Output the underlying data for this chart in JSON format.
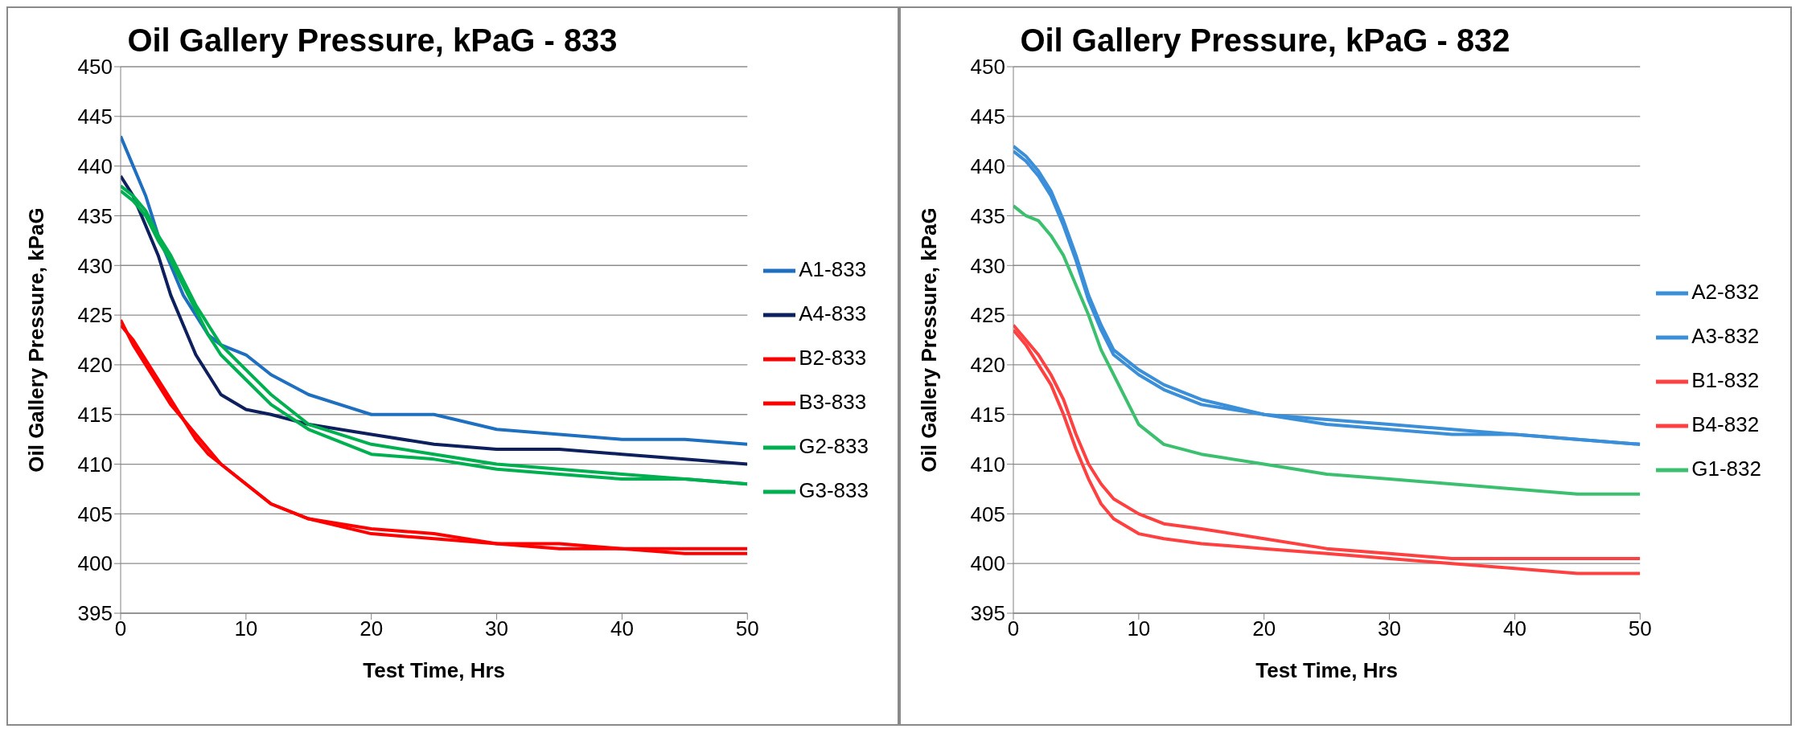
{
  "chart_data": [
    {
      "type": "line",
      "title": "Oil Gallery Pressure, kPaG - 833",
      "xlabel": "Test Time, Hrs",
      "ylabel": "Oil Gallery Pressure, kPaG",
      "x": [
        0,
        1,
        2,
        3,
        4,
        5,
        6,
        7,
        8,
        10,
        12,
        15,
        20,
        25,
        30,
        35,
        40,
        45,
        50
      ],
      "xlim": [
        0,
        50
      ],
      "xticks": [
        0,
        10,
        20,
        30,
        40,
        50
      ],
      "ylim": [
        395,
        450
      ],
      "yticks": [
        395,
        400,
        405,
        410,
        415,
        420,
        425,
        430,
        435,
        440,
        445,
        450
      ],
      "grid": "y",
      "legend": "right",
      "series": [
        {
          "name": "A1-833",
          "color": "#1f6fc0",
          "values": [
            443,
            440,
            437,
            433,
            430,
            427,
            425,
            423,
            422,
            421,
            419,
            417,
            415,
            415,
            413.5,
            413,
            412.5,
            412.5,
            412
          ]
        },
        {
          "name": "A4-833",
          "color": "#0d1f5c",
          "values": [
            439,
            437,
            434,
            431,
            427,
            424,
            421,
            419,
            417,
            415.5,
            415,
            414,
            413,
            412,
            411.5,
            411.5,
            411,
            410.5,
            410
          ]
        },
        {
          "name": "B2-833",
          "color": "#ff0000",
          "values": [
            424,
            422.5,
            420.5,
            418.5,
            416.5,
            414.5,
            413,
            411.5,
            410,
            408,
            406,
            404.5,
            403.5,
            403,
            402,
            402,
            401.5,
            401.5,
            401.5
          ]
        },
        {
          "name": "B3-833",
          "color": "#ff0000",
          "values": [
            424.5,
            422,
            420,
            418,
            416,
            414.5,
            412.5,
            411,
            410,
            408,
            406,
            404.5,
            403,
            402.5,
            402,
            401.5,
            401.5,
            401,
            401
          ]
        },
        {
          "name": "G2-833",
          "color": "#00b050",
          "values": [
            438,
            437,
            435.5,
            433,
            431,
            428.5,
            426,
            424,
            422,
            419.5,
            417,
            414,
            412,
            411,
            410,
            409.5,
            409,
            408.5,
            408
          ]
        },
        {
          "name": "G3-833",
          "color": "#00b050",
          "values": [
            437.5,
            436.5,
            435,
            432.5,
            430.5,
            428,
            425.5,
            423,
            421,
            418.5,
            416,
            413.5,
            411,
            410.5,
            409.5,
            409,
            408.5,
            408.5,
            408
          ]
        }
      ]
    },
    {
      "type": "line",
      "title": "Oil Gallery Pressure, kPaG - 832",
      "xlabel": "Test Time, Hrs",
      "ylabel": "Oil Gallery Pressure, kPaG",
      "x": [
        0,
        1,
        2,
        3,
        4,
        5,
        6,
        7,
        8,
        10,
        12,
        15,
        20,
        25,
        30,
        35,
        40,
        45,
        50
      ],
      "xlim": [
        0,
        50
      ],
      "xticks": [
        0,
        10,
        20,
        30,
        40,
        50
      ],
      "ylim": [
        395,
        450
      ],
      "yticks": [
        395,
        400,
        405,
        410,
        415,
        420,
        425,
        430,
        435,
        440,
        445,
        450
      ],
      "grid": "y",
      "legend": "right",
      "series": [
        {
          "name": "A2-832",
          "color": "#3a8fd8",
          "values": [
            442,
            441,
            439.5,
            437.5,
            434.5,
            431,
            427,
            424,
            421.5,
            419.5,
            418,
            416.5,
            415,
            414.5,
            414,
            413.5,
            413,
            412.5,
            412
          ]
        },
        {
          "name": "A3-832",
          "color": "#3a8fd8",
          "values": [
            441.5,
            440.5,
            439,
            437,
            434,
            430.5,
            426.5,
            423.5,
            421,
            419,
            417.5,
            416,
            415,
            414,
            413.5,
            413,
            413,
            412.5,
            412
          ]
        },
        {
          "name": "B1-832",
          "color": "#ff4040",
          "values": [
            424,
            422.5,
            421,
            419,
            416.5,
            413,
            410,
            408,
            406.5,
            405,
            404,
            403.5,
            402.5,
            401.5,
            401,
            400.5,
            400.5,
            400.5,
            400.5
          ]
        },
        {
          "name": "B4-832",
          "color": "#ff4040",
          "values": [
            423.5,
            422,
            420,
            418,
            415,
            411.5,
            408.5,
            406,
            404.5,
            403,
            402.5,
            402,
            401.5,
            401,
            400.5,
            400,
            399.5,
            399,
            399
          ]
        },
        {
          "name": "G1-832",
          "color": "#3cc070",
          "values": [
            436,
            435,
            434.5,
            433,
            431,
            428,
            425,
            421.5,
            419,
            414,
            412,
            411,
            410,
            409,
            408.5,
            408,
            407.5,
            407,
            407
          ]
        }
      ]
    }
  ]
}
